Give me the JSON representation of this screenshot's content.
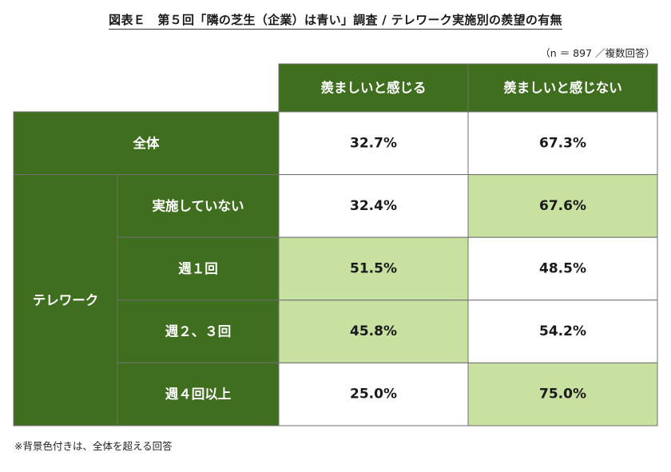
{
  "title": "図表Ｅ　第５回「隣の芝生（企業）は青い」調査 / テレワーク実施別の羨望の有無",
  "sample_note": "（n ＝ 897 ／複数回答）",
  "footnote": "※背景色付きは、全体を超える回答",
  "colors": {
    "header_green": "#3f6e1f",
    "highlight": "#c8e0a0",
    "plain": "#ffffff",
    "border": "#6f6f6f"
  },
  "chart_data": {
    "type": "table",
    "columns": [
      "羨ましいと感じる",
      "羨ましいと感じない"
    ],
    "total": {
      "label": "全体",
      "values": [
        "32.7%",
        "67.3%"
      ],
      "highlight": [
        false,
        false
      ]
    },
    "group": {
      "label": "テレワーク",
      "rows": [
        {
          "label": "実施していない",
          "values": [
            "32.4%",
            "67.6%"
          ],
          "highlight": [
            false,
            true
          ]
        },
        {
          "label": "週１回",
          "values": [
            "51.5%",
            "48.5%"
          ],
          "highlight": [
            true,
            false
          ]
        },
        {
          "label": "週２、３回",
          "values": [
            "45.8%",
            "54.2%"
          ],
          "highlight": [
            true,
            false
          ]
        },
        {
          "label": "週４回以上",
          "values": [
            "25.0%",
            "75.0%"
          ],
          "highlight": [
            false,
            true
          ]
        }
      ]
    }
  }
}
